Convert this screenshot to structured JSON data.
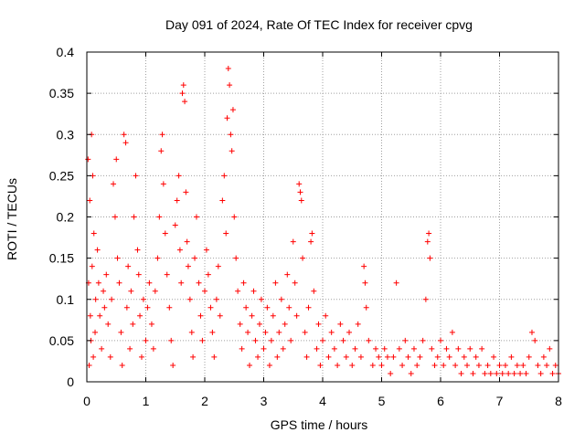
{
  "chart_data": {
    "type": "scatter",
    "title": "Day 091 of 2024, Rate Of TEC Index for receiver cpvg",
    "xlabel": "GPS time / hours",
    "ylabel": "ROTI / TECUs",
    "xlim": [
      0,
      8
    ],
    "ylim": [
      0,
      0.4
    ],
    "xticks": [
      0,
      1,
      2,
      3,
      4,
      5,
      6,
      7,
      8
    ],
    "xtick_labels": [
      "0",
      "1",
      "2",
      "3",
      "4",
      "5",
      "6",
      "7",
      "8"
    ],
    "yticks": [
      0,
      0.05,
      0.1,
      0.15,
      0.2,
      0.25,
      0.3,
      0.35,
      0.4
    ],
    "ytick_labels": [
      "0",
      "0.05",
      "0.1",
      "0.15",
      "0.2",
      "0.25",
      "0.3",
      "0.35",
      "0.4"
    ],
    "grid": true,
    "marker": "+",
    "color": "#ff0000",
    "series": [
      {
        "name": "ROTI",
        "points": [
          [
            0.02,
            0.27
          ],
          [
            0.05,
            0.22
          ],
          [
            0.08,
            0.3
          ],
          [
            0.1,
            0.25
          ],
          [
            0.12,
            0.18
          ],
          [
            0.03,
            0.12
          ],
          [
            0.06,
            0.08
          ],
          [
            0.09,
            0.14
          ],
          [
            0.15,
            0.1
          ],
          [
            0.18,
            0.16
          ],
          [
            0.04,
            0.02
          ],
          [
            0.07,
            0.05
          ],
          [
            0.11,
            0.03
          ],
          [
            0.14,
            0.06
          ],
          [
            0.2,
            0.12
          ],
          [
            0.22,
            0.08
          ],
          [
            0.25,
            0.04
          ],
          [
            0.28,
            0.11
          ],
          [
            0.3,
            0.09
          ],
          [
            0.33,
            0.13
          ],
          [
            0.36,
            0.07
          ],
          [
            0.4,
            0.03
          ],
          [
            0.42,
            0.1
          ],
          [
            0.45,
            0.24
          ],
          [
            0.48,
            0.2
          ],
          [
            0.5,
            0.27
          ],
          [
            0.52,
            0.15
          ],
          [
            0.55,
            0.12
          ],
          [
            0.58,
            0.06
          ],
          [
            0.6,
            0.02
          ],
          [
            0.63,
            0.3
          ],
          [
            0.66,
            0.29
          ],
          [
            0.68,
            0.09
          ],
          [
            0.7,
            0.14
          ],
          [
            0.73,
            0.04
          ],
          [
            0.75,
            0.11
          ],
          [
            0.78,
            0.07
          ],
          [
            0.8,
            0.2
          ],
          [
            0.83,
            0.25
          ],
          [
            0.86,
            0.16
          ],
          [
            0.88,
            0.13
          ],
          [
            0.9,
            0.08
          ],
          [
            0.93,
            0.03
          ],
          [
            0.96,
            0.1
          ],
          [
            1.0,
            0.05
          ],
          [
            1.03,
            0.09
          ],
          [
            1.06,
            0.12
          ],
          [
            1.1,
            0.07
          ],
          [
            1.13,
            0.04
          ],
          [
            1.16,
            0.11
          ],
          [
            1.2,
            0.15
          ],
          [
            1.23,
            0.2
          ],
          [
            1.26,
            0.28
          ],
          [
            1.28,
            0.3
          ],
          [
            1.3,
            0.24
          ],
          [
            1.33,
            0.18
          ],
          [
            1.36,
            0.13
          ],
          [
            1.4,
            0.09
          ],
          [
            1.43,
            0.05
          ],
          [
            1.46,
            0.02
          ],
          [
            1.5,
            0.19
          ],
          [
            1.53,
            0.22
          ],
          [
            1.56,
            0.25
          ],
          [
            1.58,
            0.16
          ],
          [
            1.6,
            0.12
          ],
          [
            1.62,
            0.35
          ],
          [
            1.64,
            0.36
          ],
          [
            1.66,
            0.34
          ],
          [
            1.68,
            0.23
          ],
          [
            1.7,
            0.17
          ],
          [
            1.72,
            0.14
          ],
          [
            1.75,
            0.1
          ],
          [
            1.78,
            0.06
          ],
          [
            1.8,
            0.03
          ],
          [
            1.83,
            0.15
          ],
          [
            1.86,
            0.2
          ],
          [
            1.9,
            0.12
          ],
          [
            1.93,
            0.08
          ],
          [
            1.96,
            0.05
          ],
          [
            2.0,
            0.11
          ],
          [
            2.03,
            0.16
          ],
          [
            2.06,
            0.13
          ],
          [
            2.1,
            0.09
          ],
          [
            2.13,
            0.06
          ],
          [
            2.16,
            0.03
          ],
          [
            2.2,
            0.1
          ],
          [
            2.23,
            0.14
          ],
          [
            2.26,
            0.08
          ],
          [
            2.3,
            0.22
          ],
          [
            2.33,
            0.25
          ],
          [
            2.36,
            0.18
          ],
          [
            2.38,
            0.32
          ],
          [
            2.4,
            0.38
          ],
          [
            2.42,
            0.36
          ],
          [
            2.44,
            0.3
          ],
          [
            2.46,
            0.28
          ],
          [
            2.48,
            0.33
          ],
          [
            2.5,
            0.2
          ],
          [
            2.53,
            0.15
          ],
          [
            2.56,
            0.11
          ],
          [
            2.6,
            0.07
          ],
          [
            2.63,
            0.04
          ],
          [
            2.66,
            0.12
          ],
          [
            2.7,
            0.09
          ],
          [
            2.73,
            0.06
          ],
          [
            2.76,
            0.02
          ],
          [
            2.8,
            0.08
          ],
          [
            2.83,
            0.11
          ],
          [
            2.86,
            0.05
          ],
          [
            2.9,
            0.03
          ],
          [
            2.93,
            0.07
          ],
          [
            2.96,
            0.1
          ],
          [
            3.0,
            0.04
          ],
          [
            3.03,
            0.06
          ],
          [
            3.06,
            0.09
          ],
          [
            3.1,
            0.02
          ],
          [
            3.13,
            0.05
          ],
          [
            3.16,
            0.08
          ],
          [
            3.2,
            0.12
          ],
          [
            3.23,
            0.03
          ],
          [
            3.26,
            0.06
          ],
          [
            3.3,
            0.1
          ],
          [
            3.33,
            0.04
          ],
          [
            3.36,
            0.07
          ],
          [
            3.4,
            0.13
          ],
          [
            3.43,
            0.09
          ],
          [
            3.46,
            0.05
          ],
          [
            3.5,
            0.17
          ],
          [
            3.53,
            0.12
          ],
          [
            3.56,
            0.08
          ],
          [
            3.6,
            0.24
          ],
          [
            3.62,
            0.23
          ],
          [
            3.64,
            0.22
          ],
          [
            3.66,
            0.15
          ],
          [
            3.7,
            0.06
          ],
          [
            3.73,
            0.03
          ],
          [
            3.76,
            0.09
          ],
          [
            3.8,
            0.17
          ],
          [
            3.82,
            0.18
          ],
          [
            3.85,
            0.11
          ],
          [
            3.9,
            0.04
          ],
          [
            3.93,
            0.07
          ],
          [
            3.96,
            0.02
          ],
          [
            4.0,
            0.05
          ],
          [
            4.05,
            0.08
          ],
          [
            4.1,
            0.03
          ],
          [
            4.15,
            0.06
          ],
          [
            4.2,
            0.04
          ],
          [
            4.25,
            0.02
          ],
          [
            4.3,
            0.07
          ],
          [
            4.35,
            0.05
          ],
          [
            4.4,
            0.03
          ],
          [
            4.45,
            0.06
          ],
          [
            4.5,
            0.02
          ],
          [
            4.55,
            0.04
          ],
          [
            4.6,
            0.07
          ],
          [
            4.65,
            0.03
          ],
          [
            4.7,
            0.14
          ],
          [
            4.72,
            0.12
          ],
          [
            4.74,
            0.09
          ],
          [
            4.78,
            0.05
          ],
          [
            4.85,
            0.02
          ],
          [
            4.9,
            0.04
          ],
          [
            4.95,
            0.03
          ],
          [
            5.0,
            0.02
          ],
          [
            5.05,
            0.04
          ],
          [
            5.1,
            0.03
          ],
          [
            5.15,
            0.01
          ],
          [
            5.2,
            0.03
          ],
          [
            5.25,
            0.12
          ],
          [
            5.3,
            0.04
          ],
          [
            5.35,
            0.02
          ],
          [
            5.4,
            0.05
          ],
          [
            5.45,
            0.03
          ],
          [
            5.5,
            0.01
          ],
          [
            5.55,
            0.04
          ],
          [
            5.6,
            0.02
          ],
          [
            5.65,
            0.03
          ],
          [
            5.7,
            0.05
          ],
          [
            5.75,
            0.1
          ],
          [
            5.78,
            0.17
          ],
          [
            5.8,
            0.18
          ],
          [
            5.82,
            0.15
          ],
          [
            5.85,
            0.04
          ],
          [
            5.9,
            0.02
          ],
          [
            5.95,
            0.03
          ],
          [
            6.0,
            0.05
          ],
          [
            6.05,
            0.02
          ],
          [
            6.1,
            0.04
          ],
          [
            6.15,
            0.03
          ],
          [
            6.2,
            0.06
          ],
          [
            6.25,
            0.02
          ],
          [
            6.3,
            0.04
          ],
          [
            6.35,
            0.01
          ],
          [
            6.4,
            0.03
          ],
          [
            6.45,
            0.02
          ],
          [
            6.5,
            0.04
          ],
          [
            6.55,
            0.01
          ],
          [
            6.6,
            0.03
          ],
          [
            6.65,
            0.02
          ],
          [
            6.7,
            0.04
          ],
          [
            6.75,
            0.01
          ],
          [
            6.8,
            0.02
          ],
          [
            6.85,
            0.01
          ],
          [
            6.9,
            0.03
          ],
          [
            6.95,
            0.01
          ],
          [
            7.0,
            0.02
          ],
          [
            7.05,
            0.01
          ],
          [
            7.1,
            0.02
          ],
          [
            7.15,
            0.01
          ],
          [
            7.2,
            0.03
          ],
          [
            7.25,
            0.01
          ],
          [
            7.3,
            0.02
          ],
          [
            7.35,
            0.01
          ],
          [
            7.4,
            0.02
          ],
          [
            7.45,
            0.01
          ],
          [
            7.5,
            0.03
          ],
          [
            7.55,
            0.06
          ],
          [
            7.6,
            0.05
          ],
          [
            7.65,
            0.02
          ],
          [
            7.7,
            0.01
          ],
          [
            7.75,
            0.03
          ],
          [
            7.8,
            0.02
          ],
          [
            7.85,
            0.04
          ],
          [
            7.9,
            0.01
          ],
          [
            7.95,
            0.02
          ],
          [
            8.0,
            0.01
          ]
        ]
      }
    ]
  }
}
